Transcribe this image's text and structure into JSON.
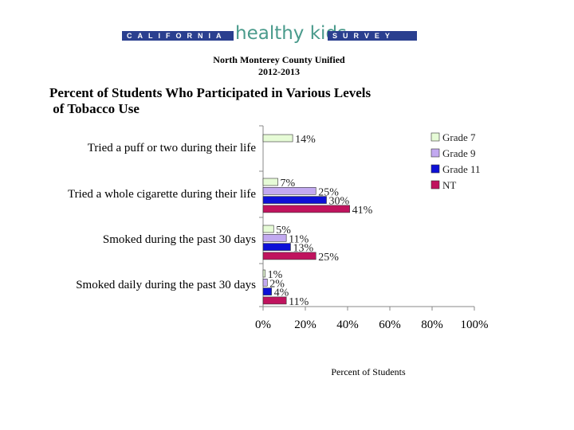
{
  "header": {
    "logo_left": "CALIFORNIA",
    "logo_mid": "healthy kids",
    "logo_right": "SURVEY",
    "district": "North Monterey County Unified",
    "year": "2012-2013"
  },
  "colors": {
    "Grade 7": "#e6fbd6",
    "Grade 9": "#c2a9f0",
    "Grade 11": "#0d10d6",
    "NT": "#c0135e"
  },
  "chart_data": {
    "type": "bar",
    "orientation": "horizontal",
    "title": "Percent of Students Who Participated in Various Levels of Tobacco Use",
    "title_lines": [
      "Percent of Students Who Participated in Various Levels",
      " of Tobacco Use"
    ],
    "xlabel": "Percent of Students",
    "ylabel": "",
    "xlim": [
      0,
      100
    ],
    "xticks": [
      "0%",
      "20%",
      "40%",
      "60%",
      "80%",
      "100%"
    ],
    "grid": false,
    "legend_position": "top-right",
    "categories": [
      "Tried a puff or two during their life",
      "Tried a whole cigarette during their life",
      "Smoked during the past 30 days",
      "Smoked daily during the past 30 days"
    ],
    "series": [
      {
        "name": "Grade 7",
        "values": [
          14,
          7,
          5,
          1
        ],
        "labels": [
          "14%",
          "7%",
          "5%",
          "1%"
        ]
      },
      {
        "name": "Grade 9",
        "values": [
          null,
          25,
          11,
          2
        ],
        "labels": [
          "",
          "25%",
          "11%",
          "2%"
        ]
      },
      {
        "name": "Grade 11",
        "values": [
          null,
          30,
          13,
          4
        ],
        "labels": [
          "",
          "30%",
          "13%",
          "4%"
        ]
      },
      {
        "name": "NT",
        "values": [
          null,
          41,
          25,
          11
        ],
        "labels": [
          "",
          "41%",
          "25%",
          "11%"
        ]
      }
    ]
  }
}
